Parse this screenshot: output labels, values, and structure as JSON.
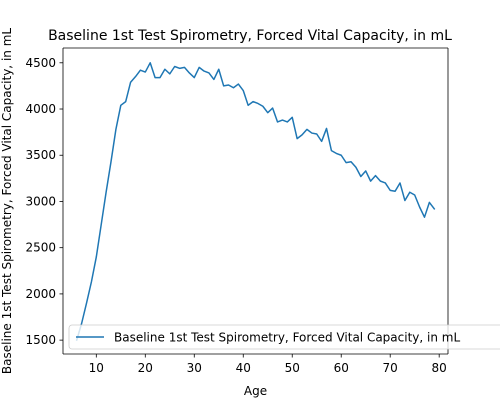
{
  "chart_data": {
    "type": "line",
    "title": "Baseline 1st Test Spirometry, Forced Vital Capacity, in mL",
    "xlabel": "Age",
    "ylabel": "Baseline 1st Test Spirometry, Forced Vital Capacity, in mL",
    "xlim": [
      3.2,
      81.8
    ],
    "ylim": [
      1350,
      4660
    ],
    "xticks": [
      10,
      20,
      30,
      40,
      50,
      60,
      70,
      80
    ],
    "yticks": [
      1500,
      2000,
      2500,
      3000,
      3500,
      4000,
      4500
    ],
    "grid": false,
    "legend_position": "lower-left",
    "line_color": "#1f77b4",
    "series": [
      {
        "name": "Baseline 1st Test Spirometry, Forced Vital Capacity, in mL",
        "x": [
          6,
          7,
          8,
          9,
          10,
          11,
          12,
          13,
          14,
          15,
          16,
          17,
          18,
          19,
          20,
          21,
          22,
          23,
          24,
          25,
          26,
          27,
          28,
          29,
          30,
          31,
          32,
          33,
          34,
          35,
          36,
          37,
          38,
          39,
          40,
          41,
          42,
          43,
          44,
          45,
          46,
          47,
          48,
          49,
          50,
          51,
          52,
          53,
          54,
          55,
          56,
          57,
          58,
          59,
          60,
          61,
          62,
          63,
          64,
          65,
          66,
          67,
          68,
          69,
          70,
          71,
          72,
          73,
          74,
          75,
          76,
          77,
          78,
          79
        ],
        "values": [
          1500,
          1680,
          1900,
          2130,
          2400,
          2750,
          3100,
          3430,
          3780,
          4040,
          4080,
          4290,
          4350,
          4420,
          4400,
          4500,
          4340,
          4340,
          4430,
          4380,
          4460,
          4440,
          4450,
          4390,
          4340,
          4450,
          4410,
          4390,
          4320,
          4430,
          4250,
          4260,
          4230,
          4270,
          4200,
          4040,
          4080,
          4060,
          4030,
          3960,
          4010,
          3860,
          3880,
          3860,
          3910,
          3680,
          3720,
          3780,
          3740,
          3730,
          3650,
          3790,
          3550,
          3520,
          3500,
          3420,
          3430,
          3370,
          3270,
          3330,
          3220,
          3280,
          3220,
          3200,
          3120,
          3110,
          3200,
          3010,
          3100,
          3070,
          2940,
          2830,
          2990,
          2920
        ]
      }
    ]
  }
}
